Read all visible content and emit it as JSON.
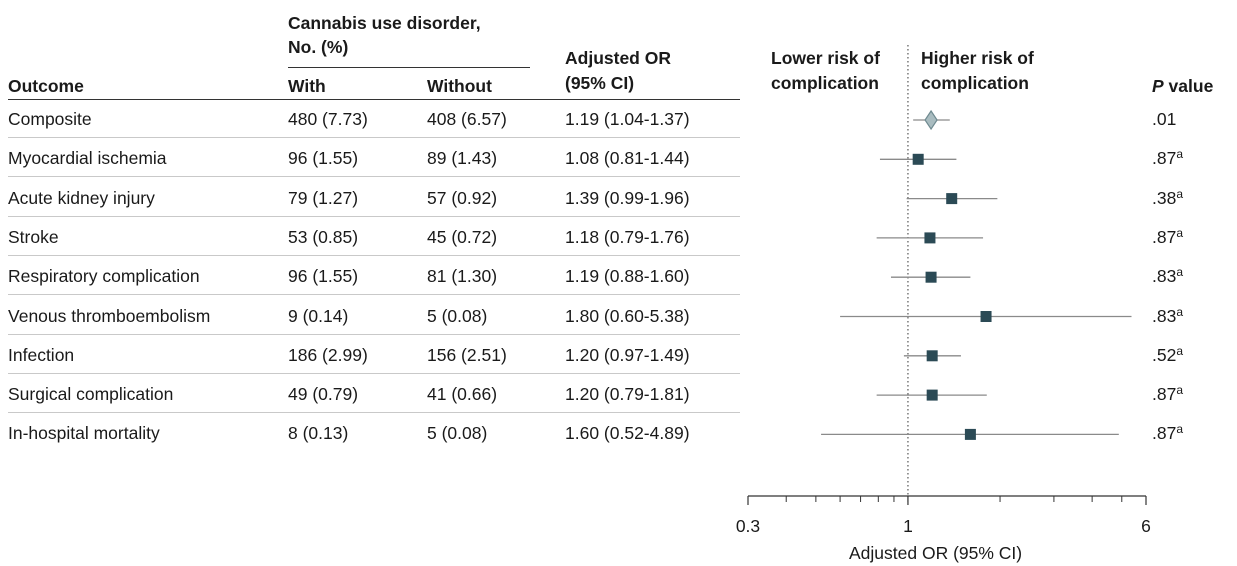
{
  "table": {
    "group_header": [
      "Cannabis use disorder,",
      "No. (%)"
    ],
    "or_header": [
      "Adjusted OR",
      "(95% CI)"
    ],
    "col_outcome": "Outcome",
    "col_with": "With",
    "col_without": "Without",
    "pvalue_header": {
      "italic": "P",
      "rest": " value"
    }
  },
  "forest": {
    "lower_label": [
      "Lower risk of",
      "complication"
    ],
    "higher_label": [
      "Higher risk of",
      "complication"
    ]
  },
  "chart_data": {
    "type": "forest",
    "x_label": "Adjusted OR (95% CI)",
    "x_scale": "log",
    "x_range": [
      0.3,
      6
    ],
    "x_ticks": [
      "0.3",
      "1",
      "6"
    ],
    "reference_line": 1,
    "rows": [
      {
        "outcome": "Composite",
        "with": "480 (7.73)",
        "without": "408 (6.57)",
        "or_text": "1.19 (1.04-1.37)",
        "or": 1.19,
        "lo": 1.04,
        "hi": 1.37,
        "p": ".01",
        "p_note": "",
        "marker": "diamond"
      },
      {
        "outcome": "Myocardial ischemia",
        "with": "96 (1.55)",
        "without": "89 (1.43)",
        "or_text": "1.08 (0.81-1.44)",
        "or": 1.08,
        "lo": 0.81,
        "hi": 1.44,
        "p": ".87",
        "p_note": "a",
        "marker": "square"
      },
      {
        "outcome": "Acute kidney injury",
        "with": "79 (1.27)",
        "without": "57 (0.92)",
        "or_text": "1.39 (0.99-1.96)",
        "or": 1.39,
        "lo": 0.99,
        "hi": 1.96,
        "p": ".38",
        "p_note": "a",
        "marker": "square"
      },
      {
        "outcome": "Stroke",
        "with": "53 (0.85)",
        "without": "45 (0.72)",
        "or_text": "1.18 (0.79-1.76)",
        "or": 1.18,
        "lo": 0.79,
        "hi": 1.76,
        "p": ".87",
        "p_note": "a",
        "marker": "square"
      },
      {
        "outcome": "Respiratory complication",
        "with": "96 (1.55)",
        "without": "81 (1.30)",
        "or_text": "1.19 (0.88-1.60)",
        "or": 1.19,
        "lo": 0.88,
        "hi": 1.6,
        "p": ".83",
        "p_note": "a",
        "marker": "square"
      },
      {
        "outcome": "Venous thromboembolism",
        "with": "9 (0.14)",
        "without": "5 (0.08)",
        "or_text": "1.80 (0.60-5.38)",
        "or": 1.8,
        "lo": 0.6,
        "hi": 5.38,
        "p": ".83",
        "p_note": "a",
        "marker": "square"
      },
      {
        "outcome": "Infection",
        "with": "186 (2.99)",
        "without": "156 (2.51)",
        "or_text": "1.20 (0.97-1.49)",
        "or": 1.2,
        "lo": 0.97,
        "hi": 1.49,
        "p": ".52",
        "p_note": "a",
        "marker": "square"
      },
      {
        "outcome": "Surgical complication",
        "with": "49 (0.79)",
        "without": "41 (0.66)",
        "or_text": "1.20 (0.79-1.81)",
        "or": 1.2,
        "lo": 0.79,
        "hi": 1.81,
        "p": ".87",
        "p_note": "a",
        "marker": "square"
      },
      {
        "outcome": "In-hospital mortality",
        "with": "8 (0.13)",
        "without": "5 (0.08)",
        "or_text": "1.60 (0.52-4.89)",
        "or": 1.6,
        "lo": 0.52,
        "hi": 4.89,
        "p": ".87",
        "p_note": "a",
        "marker": "square"
      }
    ],
    "colors": {
      "marker": "#2b4a55",
      "diamond_fill": "#a9bcc0",
      "diamond_stroke": "#6f8a90",
      "ci_line": "#8a8a8a",
      "axis": "#333333",
      "ref_line": "#555555"
    }
  }
}
